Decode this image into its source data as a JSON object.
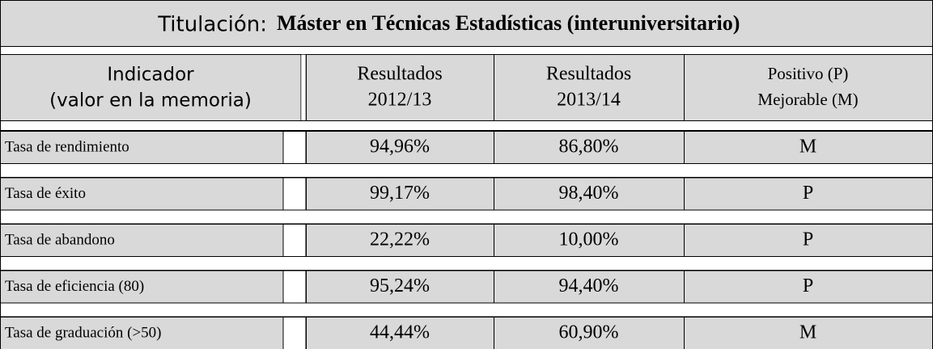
{
  "title_label": "Titulación:",
  "title": "Máster en Técnicas Estadísticas (interuniversitario)",
  "header": [
    [
      "Indicador",
      "(valor en la memoria)"
    ],
    [
      "Resultados",
      "2012/13"
    ],
    [
      "Resultados",
      "2013/14"
    ],
    [
      "Positivo (P)",
      "Mejorable (M)"
    ]
  ],
  "rows": [
    [
      "Tasa de rendimiento",
      "94,96%",
      "86,80%",
      "M"
    ],
    [
      "Tasa de éxito",
      "99,17%",
      "98,40%",
      "P"
    ],
    [
      "Tasa de abandono",
      "22,22%",
      "10,00%",
      "P"
    ],
    [
      "Tasa de eficiencia (80)",
      "95,24%",
      "94,40%",
      "P"
    ],
    [
      "Tasa de graduación (>50)",
      "44,44%",
      "60,90%",
      "M"
    ]
  ]
}
